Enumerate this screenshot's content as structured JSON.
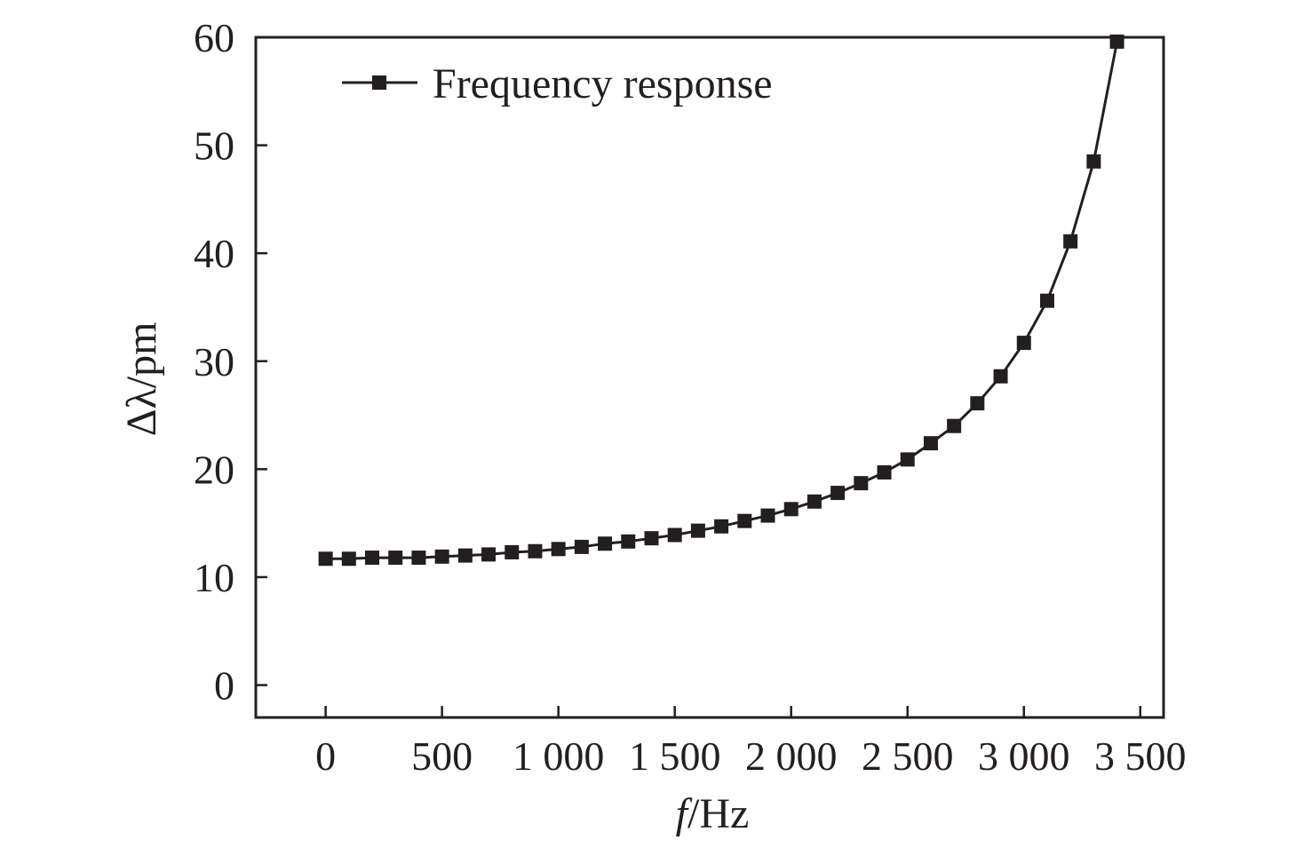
{
  "chart_data": {
    "type": "line",
    "xlabel": "f/Hz",
    "xlabel_var": "f",
    "xlabel_unit": "/Hz",
    "ylabel": "Δλ/pm",
    "xlim": [
      -300,
      3600
    ],
    "ylim": [
      -3,
      60
    ],
    "xticks": [
      0,
      500,
      1000,
      1500,
      2000,
      2500,
      3000,
      3500
    ],
    "xtick_labels": [
      "0",
      "500",
      "1 000",
      "1 500",
      "2 000",
      "2 500",
      "3 000",
      "3 500"
    ],
    "yticks": [
      0,
      10,
      20,
      30,
      40,
      50,
      60
    ],
    "ytick_labels": [
      "0",
      "10",
      "20",
      "30",
      "40",
      "50",
      "60"
    ],
    "grid": false,
    "legend_position": "top-left",
    "series": [
      {
        "name": "Frequency response",
        "color": "#231f20",
        "marker": "square",
        "x": [
          0,
          100,
          200,
          300,
          400,
          500,
          600,
          700,
          800,
          900,
          1000,
          1100,
          1200,
          1300,
          1400,
          1500,
          1600,
          1700,
          1800,
          1900,
          2000,
          2100,
          2200,
          2300,
          2400,
          2500,
          2600,
          2700,
          2800,
          2900,
          3000,
          3100,
          3200,
          3300,
          3400
        ],
        "y": [
          11.7,
          11.7,
          11.8,
          11.8,
          11.8,
          11.9,
          12.0,
          12.1,
          12.3,
          12.4,
          12.6,
          12.8,
          13.1,
          13.3,
          13.6,
          13.9,
          14.3,
          14.7,
          15.2,
          15.7,
          16.3,
          17.0,
          17.8,
          18.7,
          19.7,
          20.9,
          22.4,
          24.0,
          26.1,
          28.6,
          31.7,
          35.6,
          41.1,
          48.5,
          59.6
        ]
      }
    ]
  }
}
